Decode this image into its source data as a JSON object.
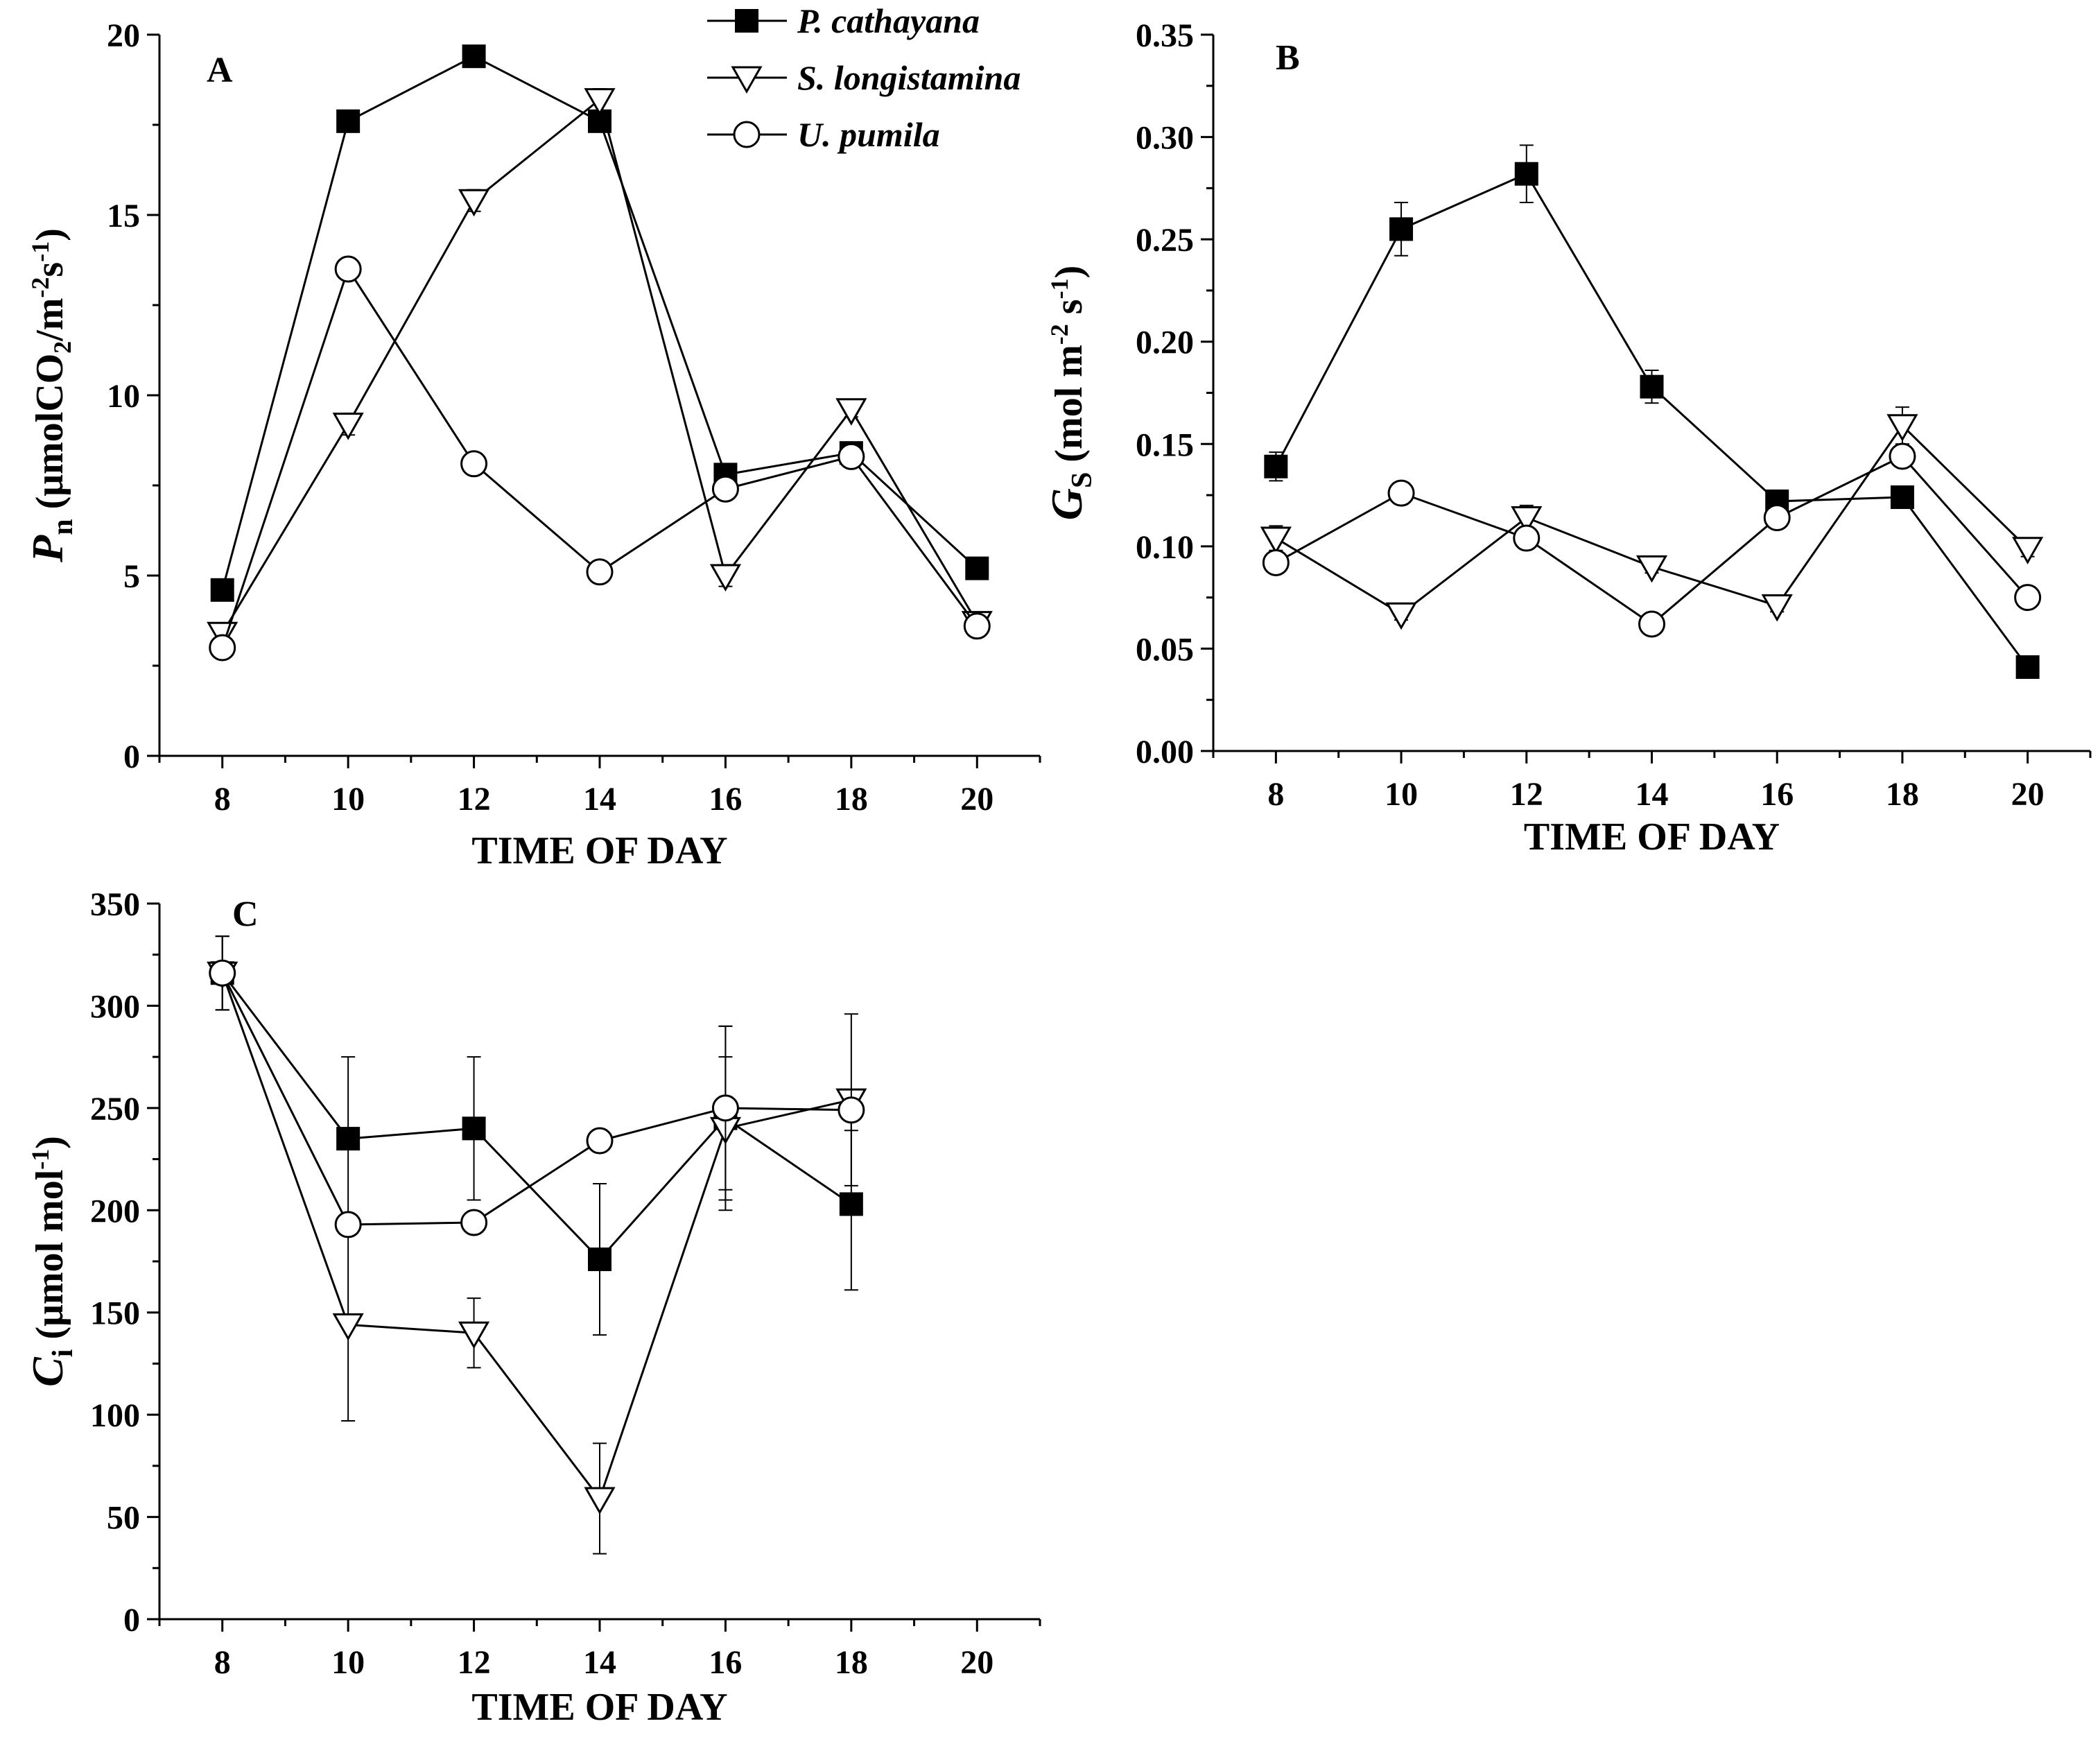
{
  "legend": [
    {
      "name": "P. cathayana",
      "marker": "square-filled"
    },
    {
      "name": "S. longistamina",
      "marker": "triangle-down-open"
    },
    {
      "name": "U. pumila",
      "marker": "circle-open"
    }
  ],
  "chart_data": [
    {
      "panel": "A",
      "type": "line",
      "xlabel": "TIME OF DAY",
      "ylabel_parts": {
        "main": "P",
        "sub": "n",
        "unit_pre": " (μmolCO",
        "unit_sub": "2",
        "unit_mid": "/m",
        "unit_sup1": "-2",
        "unit_mid2": "s",
        "unit_sup2": "-1",
        "unit_post": ")"
      },
      "x": [
        8,
        10,
        12,
        14,
        16,
        18,
        20
      ],
      "xlim": [
        7,
        21
      ],
      "ylim": [
        0,
        20
      ],
      "yticks": [
        0,
        5,
        10,
        15,
        20
      ],
      "ytick_labels": [
        "0",
        "5",
        "10",
        "15",
        "20"
      ],
      "series": [
        {
          "name": "P. cathayana",
          "values": [
            4.6,
            17.6,
            19.4,
            17.6,
            7.8,
            8.4,
            5.2
          ],
          "err": [
            0.1,
            0.2,
            0.2,
            0.2,
            0.2,
            0.2,
            0.15
          ]
        },
        {
          "name": "S. longistamina",
          "values": [
            3.4,
            9.2,
            15.4,
            18.2,
            5.0,
            9.6,
            3.7
          ],
          "err": [
            0.2,
            0.3,
            0.3,
            0.3,
            0.3,
            0.2,
            0.2
          ]
        },
        {
          "name": "U. pumila",
          "values": [
            3.0,
            13.5,
            8.1,
            5.1,
            7.4,
            8.3,
            3.6
          ],
          "err": [
            0.3,
            0.3,
            0.2,
            0.2,
            0.2,
            0.3,
            0.2
          ]
        }
      ]
    },
    {
      "panel": "B",
      "type": "line",
      "xlabel": "TIME OF DAY",
      "ylabel_parts": {
        "main": "G",
        "sub": "S",
        "unit_pre": " (mol m",
        "unit_sup1": "-2",
        "unit_mid2": " s",
        "unit_sup2": "-1",
        "unit_post": ")"
      },
      "x": [
        8,
        10,
        12,
        14,
        16,
        18,
        20
      ],
      "xlim": [
        7,
        21
      ],
      "ylim": [
        0,
        0.35
      ],
      "yticks": [
        0,
        0.05,
        0.1,
        0.15,
        0.2,
        0.25,
        0.3,
        0.35
      ],
      "ytick_labels": [
        "0.00",
        "0.05",
        "0.10",
        "0.15",
        "0.20",
        "0.25",
        "0.30",
        "0.35"
      ],
      "series": [
        {
          "name": "P. cathayana",
          "values": [
            0.139,
            0.255,
            0.282,
            0.178,
            0.122,
            0.124,
            0.041
          ],
          "err": [
            0.007,
            0.013,
            0.014,
            0.008,
            0.004,
            0.004,
            0.003
          ]
        },
        {
          "name": "S. longistamina",
          "values": [
            0.104,
            0.067,
            0.114,
            0.09,
            0.071,
            0.159,
            0.099
          ],
          "err": [
            0.006,
            0.003,
            0.006,
            0.003,
            0.003,
            0.009,
            0.004
          ]
        },
        {
          "name": "U. pumila",
          "values": [
            0.092,
            0.126,
            0.104,
            0.062,
            0.114,
            0.144,
            0.075
          ],
          "err": [
            0.004,
            0.005,
            0.004,
            0.003,
            0.004,
            0.004,
            0.004
          ]
        }
      ]
    },
    {
      "panel": "C",
      "type": "line",
      "xlabel": "TIME OF DAY",
      "ylabel_parts": {
        "main": "C",
        "sub": "i",
        "unit_pre": " (μmol mol",
        "unit_sup1": "-1",
        "unit_post": ")"
      },
      "x": [
        8,
        10,
        12,
        14,
        16,
        18
      ],
      "xticks": [
        8,
        10,
        12,
        14,
        16,
        18,
        20
      ],
      "xlim": [
        7,
        21
      ],
      "ylim": [
        0,
        350
      ],
      "yticks": [
        0,
        50,
        100,
        150,
        200,
        250,
        300,
        350
      ],
      "ytick_labels": [
        "0",
        "50",
        "100",
        "150",
        "200",
        "250",
        "300",
        "350"
      ],
      "series": [
        {
          "name": "P. cathayana",
          "values": [
            316,
            235,
            240,
            176,
            245,
            203
          ],
          "err": [
            18,
            40,
            35,
            37,
            45,
            42
          ]
        },
        {
          "name": "S. longistamina",
          "values": [
            316,
            144,
            140,
            59,
            240,
            254
          ],
          "err": [
            18,
            47,
            17,
            27,
            35,
            42
          ]
        },
        {
          "name": "U. pumila",
          "values": [
            316,
            193,
            194,
            234,
            250,
            249
          ],
          "err": [
            18,
            3,
            3,
            3,
            40,
            10
          ]
        }
      ]
    }
  ]
}
